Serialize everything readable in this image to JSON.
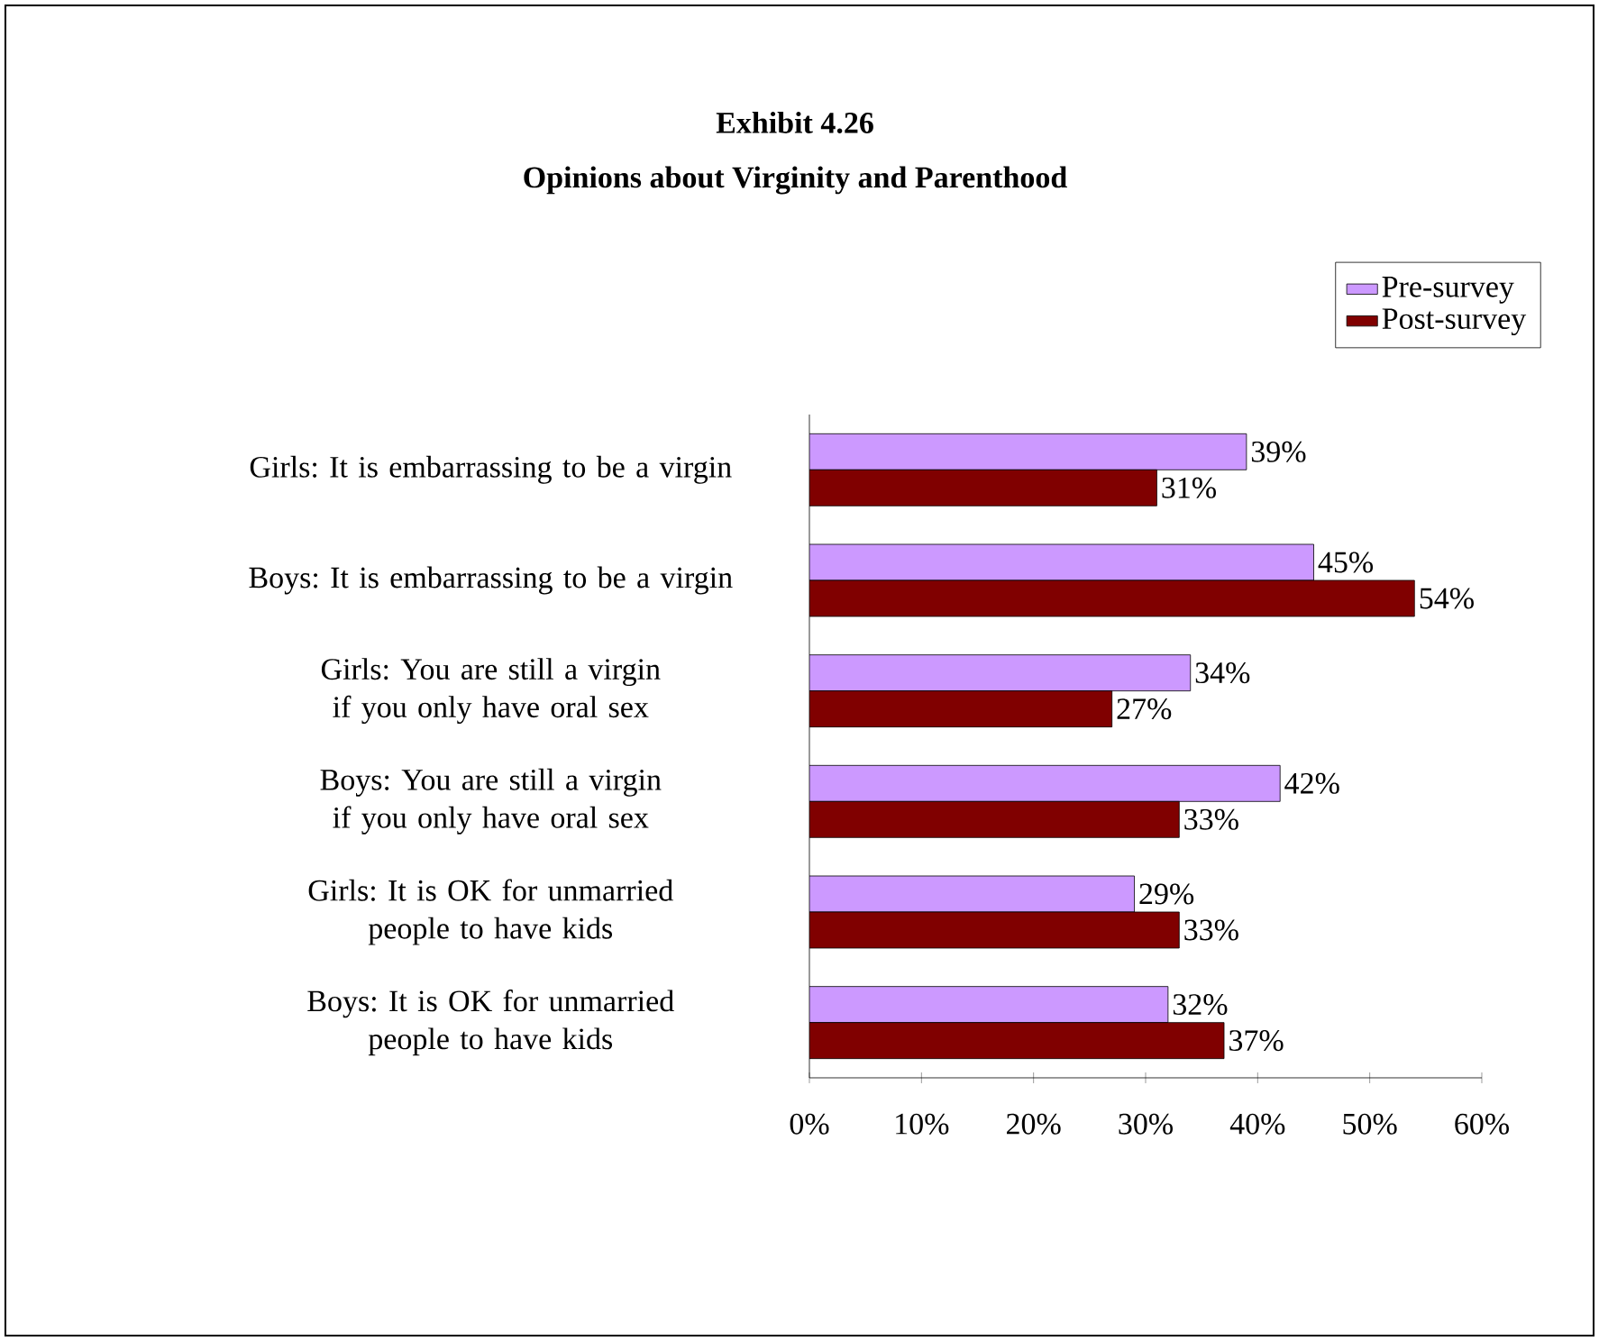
{
  "chart_data": {
    "type": "bar",
    "orientation": "horizontal",
    "title": "Exhibit 4.26",
    "subtitle": "Opinions about Virginity and Parenthood",
    "categories": [
      "Girls: It is embarrassing to be a virgin",
      "Boys: It is embarrassing to be a virgin",
      "Girls: You are still a virgin if you only have oral sex",
      "Boys: You are still a virgin if you only have oral sex",
      "Girls: It is OK for unmarried people to have kids",
      "Boys: It is OK for unmarried people to have kids"
    ],
    "series": [
      {
        "name": "Pre-survey",
        "color": "#cc99ff",
        "values": [
          39,
          45,
          34,
          42,
          29,
          32
        ],
        "value_labels": [
          "39%",
          "45%",
          "34%",
          "42%",
          "29%",
          "32%"
        ]
      },
      {
        "name": "Post-survey",
        "color": "#800000",
        "values": [
          31,
          54,
          27,
          33,
          33,
          37
        ],
        "value_labels": [
          "31%",
          "54%",
          "27%",
          "33%",
          "33%",
          "37%"
        ]
      }
    ],
    "xlim": [
      0,
      60
    ],
    "xticks": [
      {
        "value": 0,
        "label": "0%"
      },
      {
        "value": 10,
        "label": "10%"
      },
      {
        "value": 20,
        "label": "20%"
      },
      {
        "value": 30,
        "label": "30%"
      },
      {
        "value": 40,
        "label": "40%"
      },
      {
        "value": 50,
        "label": "50%"
      },
      {
        "value": 60,
        "label": "60%"
      }
    ],
    "legend": "top right",
    "grid": false
  }
}
